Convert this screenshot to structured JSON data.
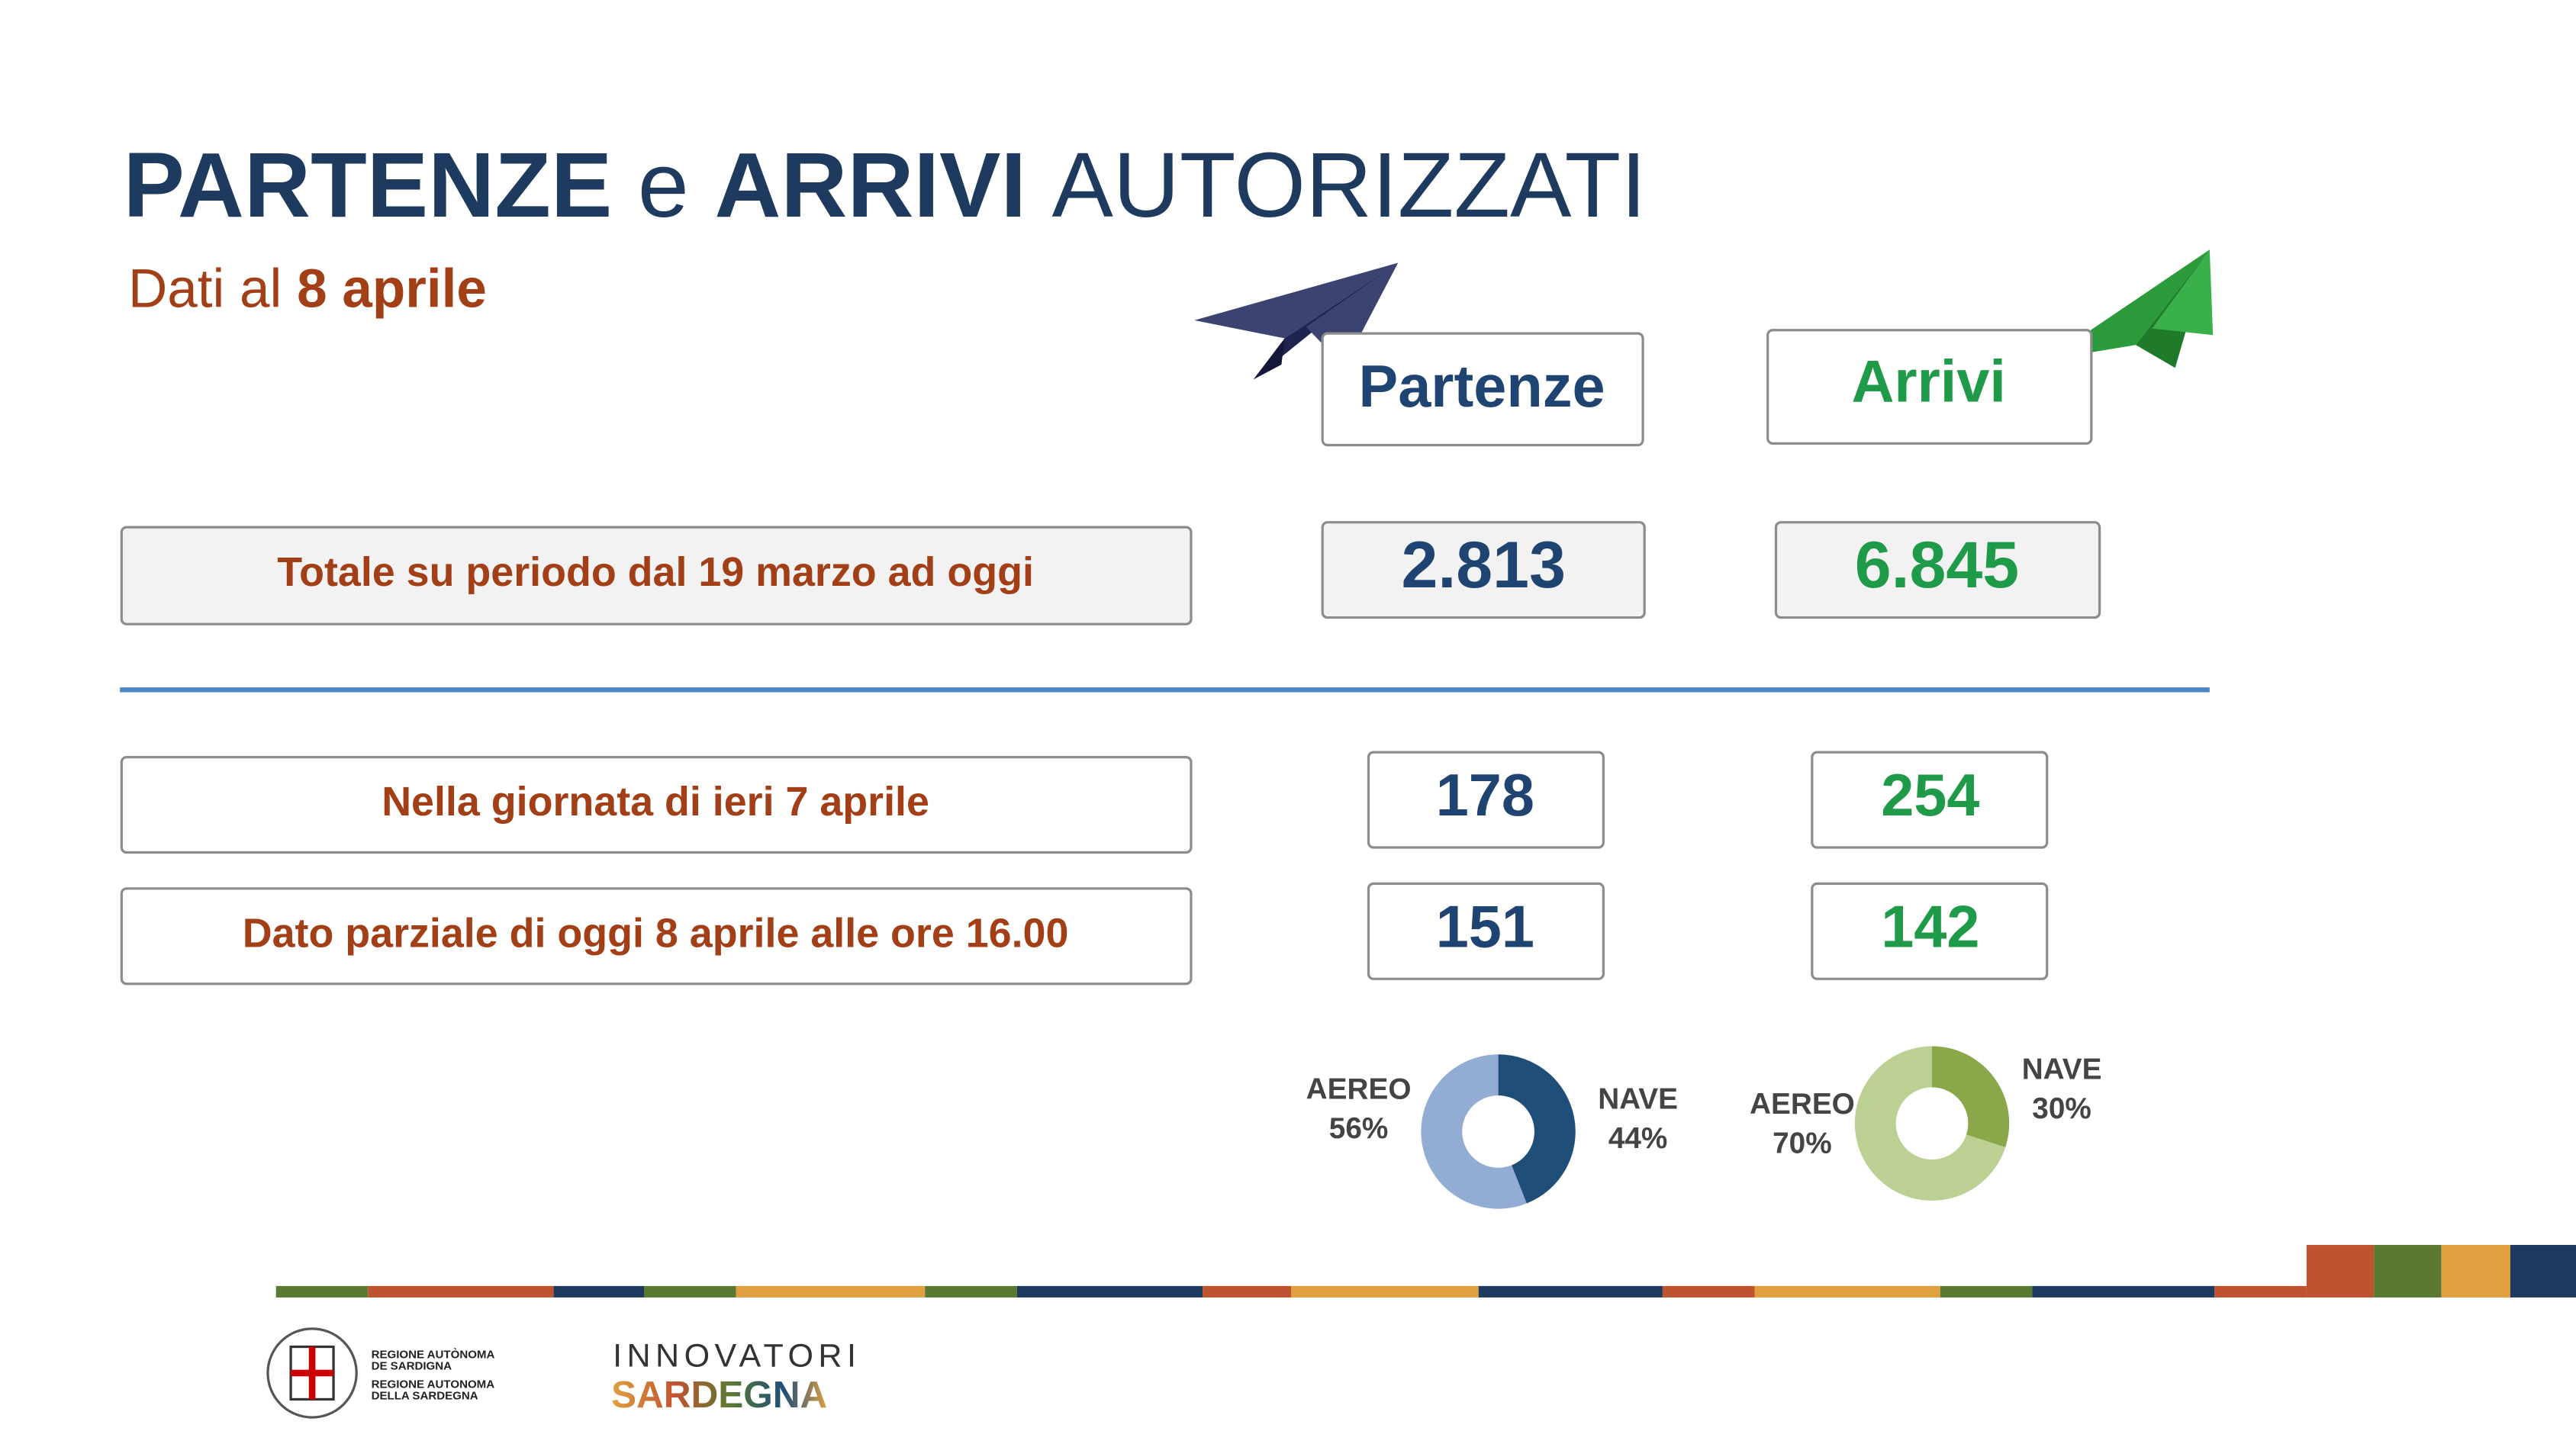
{
  "header": {
    "title": [
      "PARTENZE",
      "e",
      "ARRIVI",
      "AUTORIZZATI"
    ],
    "subtitle": [
      "Dati al",
      "8 aprile"
    ]
  },
  "table": {
    "columns": [
      "Partenze",
      "Arrivi"
    ],
    "rows": [
      [
        "Totale su periodo dal 19 marzo ad oggi",
        "2.813",
        "6.845"
      ],
      [
        "Nella giornata di ieri 7 aprile",
        "178",
        "254"
      ],
      [
        "Dato parziale di oggi 8 aprile alle ore 16.00",
        "151",
        "142"
      ]
    ]
  },
  "donuts": [
    {
      "names": [
        "AEREO",
        "NAVE"
      ],
      "values": [
        56,
        44
      ],
      "value_labels": [
        "56%",
        "44%"
      ],
      "colors": [
        "#93acd4",
        "#1f4e79"
      ]
    },
    {
      "names": [
        "AEREO",
        "NAVE"
      ],
      "values": [
        70,
        30
      ],
      "value_labels": [
        "70%",
        "30%"
      ],
      "colors": [
        "#bcd094",
        "#8aa84a"
      ]
    }
  ],
  "footer": {
    "region": [
      "REGIONE AUTÒNOMA",
      "DE SARDIGNA",
      "REGIONE AUTONOMA",
      "DELLA SARDEGNA"
    ],
    "brand": [
      "INNOVATORI",
      "SARDEGNA"
    ]
  }
}
